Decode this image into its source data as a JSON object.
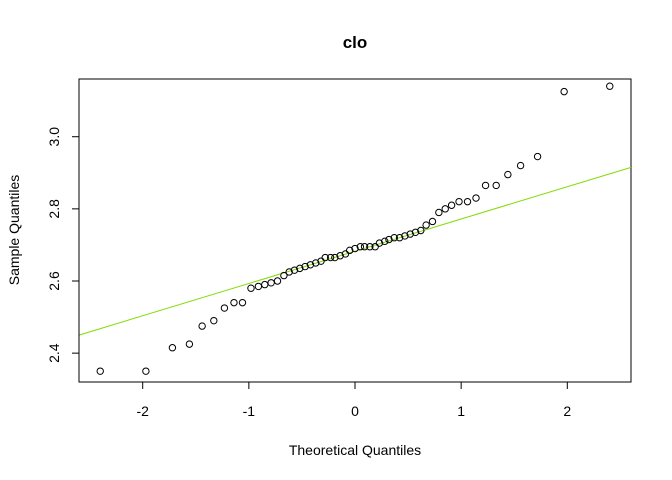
{
  "chart_data": {
    "type": "scatter",
    "title": "clo",
    "xlabel": "Theoretical Quantiles",
    "ylabel": "Sample Quantiles",
    "xlim": [
      -2.6,
      2.6
    ],
    "ylim": [
      2.32,
      3.16
    ],
    "x_ticks": [
      -2,
      -1,
      0,
      1,
      2
    ],
    "y_ticks": [
      2.4,
      2.6,
      2.8,
      3.0
    ],
    "x_tick_labels": [
      "-2",
      "-1",
      "0",
      "1",
      "2"
    ],
    "y_tick_labels": [
      "2.4",
      "2.6",
      "2.8",
      "3.0"
    ],
    "grid": false,
    "point_color": "#000000",
    "line_color": "#7fdc00",
    "reference_line": {
      "x": [
        -2.6,
        2.6
      ],
      "y": [
        2.45,
        2.915
      ]
    },
    "x": [
      -2.4,
      -1.97,
      -1.72,
      -1.56,
      -1.44,
      -1.33,
      -1.23,
      -1.14,
      -1.06,
      -0.98,
      -0.91,
      -0.85,
      -0.79,
      -0.73,
      -0.67,
      -0.62,
      -0.57,
      -0.52,
      -0.47,
      -0.42,
      -0.37,
      -0.32,
      -0.28,
      -0.23,
      -0.19,
      -0.14,
      -0.09,
      -0.05,
      0.0,
      0.05,
      0.09,
      0.14,
      0.19,
      0.23,
      0.28,
      0.32,
      0.37,
      0.42,
      0.47,
      0.52,
      0.57,
      0.62,
      0.67,
      0.73,
      0.79,
      0.85,
      0.91,
      0.98,
      1.06,
      1.14,
      1.23,
      1.33,
      1.44,
      1.56,
      1.72,
      1.97,
      2.4
    ],
    "y": [
      2.35,
      2.35,
      2.415,
      2.425,
      2.475,
      2.49,
      2.525,
      2.54,
      2.54,
      2.58,
      2.585,
      2.59,
      2.595,
      2.6,
      2.615,
      2.625,
      2.63,
      2.635,
      2.64,
      2.645,
      2.65,
      2.655,
      2.665,
      2.665,
      2.665,
      2.67,
      2.675,
      2.685,
      2.69,
      2.695,
      2.695,
      2.695,
      2.695,
      2.705,
      2.71,
      2.715,
      2.72,
      2.72,
      2.725,
      2.73,
      2.735,
      2.74,
      2.755,
      2.765,
      2.79,
      2.8,
      2.81,
      2.82,
      2.82,
      2.83,
      2.865,
      2.865,
      2.895,
      2.92,
      2.945,
      3.125,
      3.14
    ]
  }
}
